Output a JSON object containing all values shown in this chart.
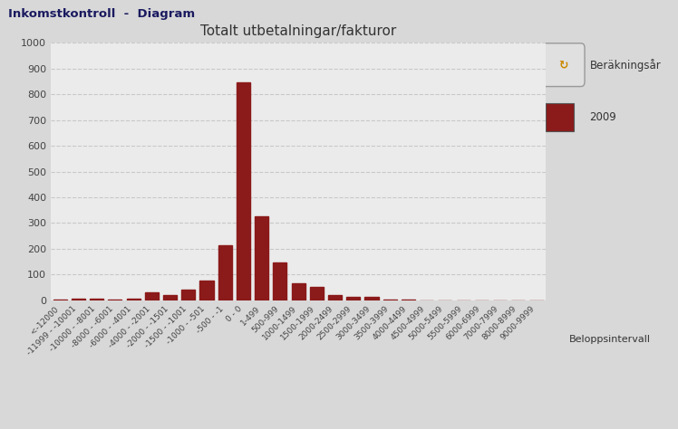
{
  "title": "Totalt utbetalningar/fakturor",
  "xlabel": "Beloppsintervall",
  "categories": [
    "<-12000",
    "-11999 - -10001",
    "-10000 - -8001",
    "-8000 - -6001",
    "-6000 - -4001",
    "-4000 - -2001",
    "-2000 - -1501",
    "-1500 - -1001",
    "-1000 - -501",
    "-500 - -1",
    "0 - 0",
    "1-499",
    "500-999",
    "1000-1499",
    "1500-1999",
    "2000-2499",
    "2500-2999",
    "3000-3499",
    "3500-3999",
    "4000-4499",
    "4500-4999",
    "5000-5499",
    "5500-5999",
    "6000-6999",
    "7000-7999",
    "8000-8999",
    "9000-9999"
  ],
  "values": [
    2,
    5,
    8,
    2,
    8,
    30,
    20,
    42,
    75,
    215,
    845,
    325,
    148,
    65,
    52,
    22,
    14,
    12,
    3,
    2,
    1,
    0,
    0,
    0,
    0,
    0,
    0
  ],
  "bar_color": "#8B1A1A",
  "legend_year": "2009",
  "ylim": [
    0,
    1000
  ],
  "yticks": [
    0,
    100,
    200,
    300,
    400,
    500,
    600,
    700,
    800,
    900,
    1000
  ],
  "outer_bg": "#D8D8D8",
  "plot_bg_color": "#EBEBEB",
  "titlebar_bg": "#A8C0D8",
  "titlebar_text": "Inkomstkontroll  -  Diagram",
  "grid_color": "#C8C8C8",
  "grid_style": "--"
}
